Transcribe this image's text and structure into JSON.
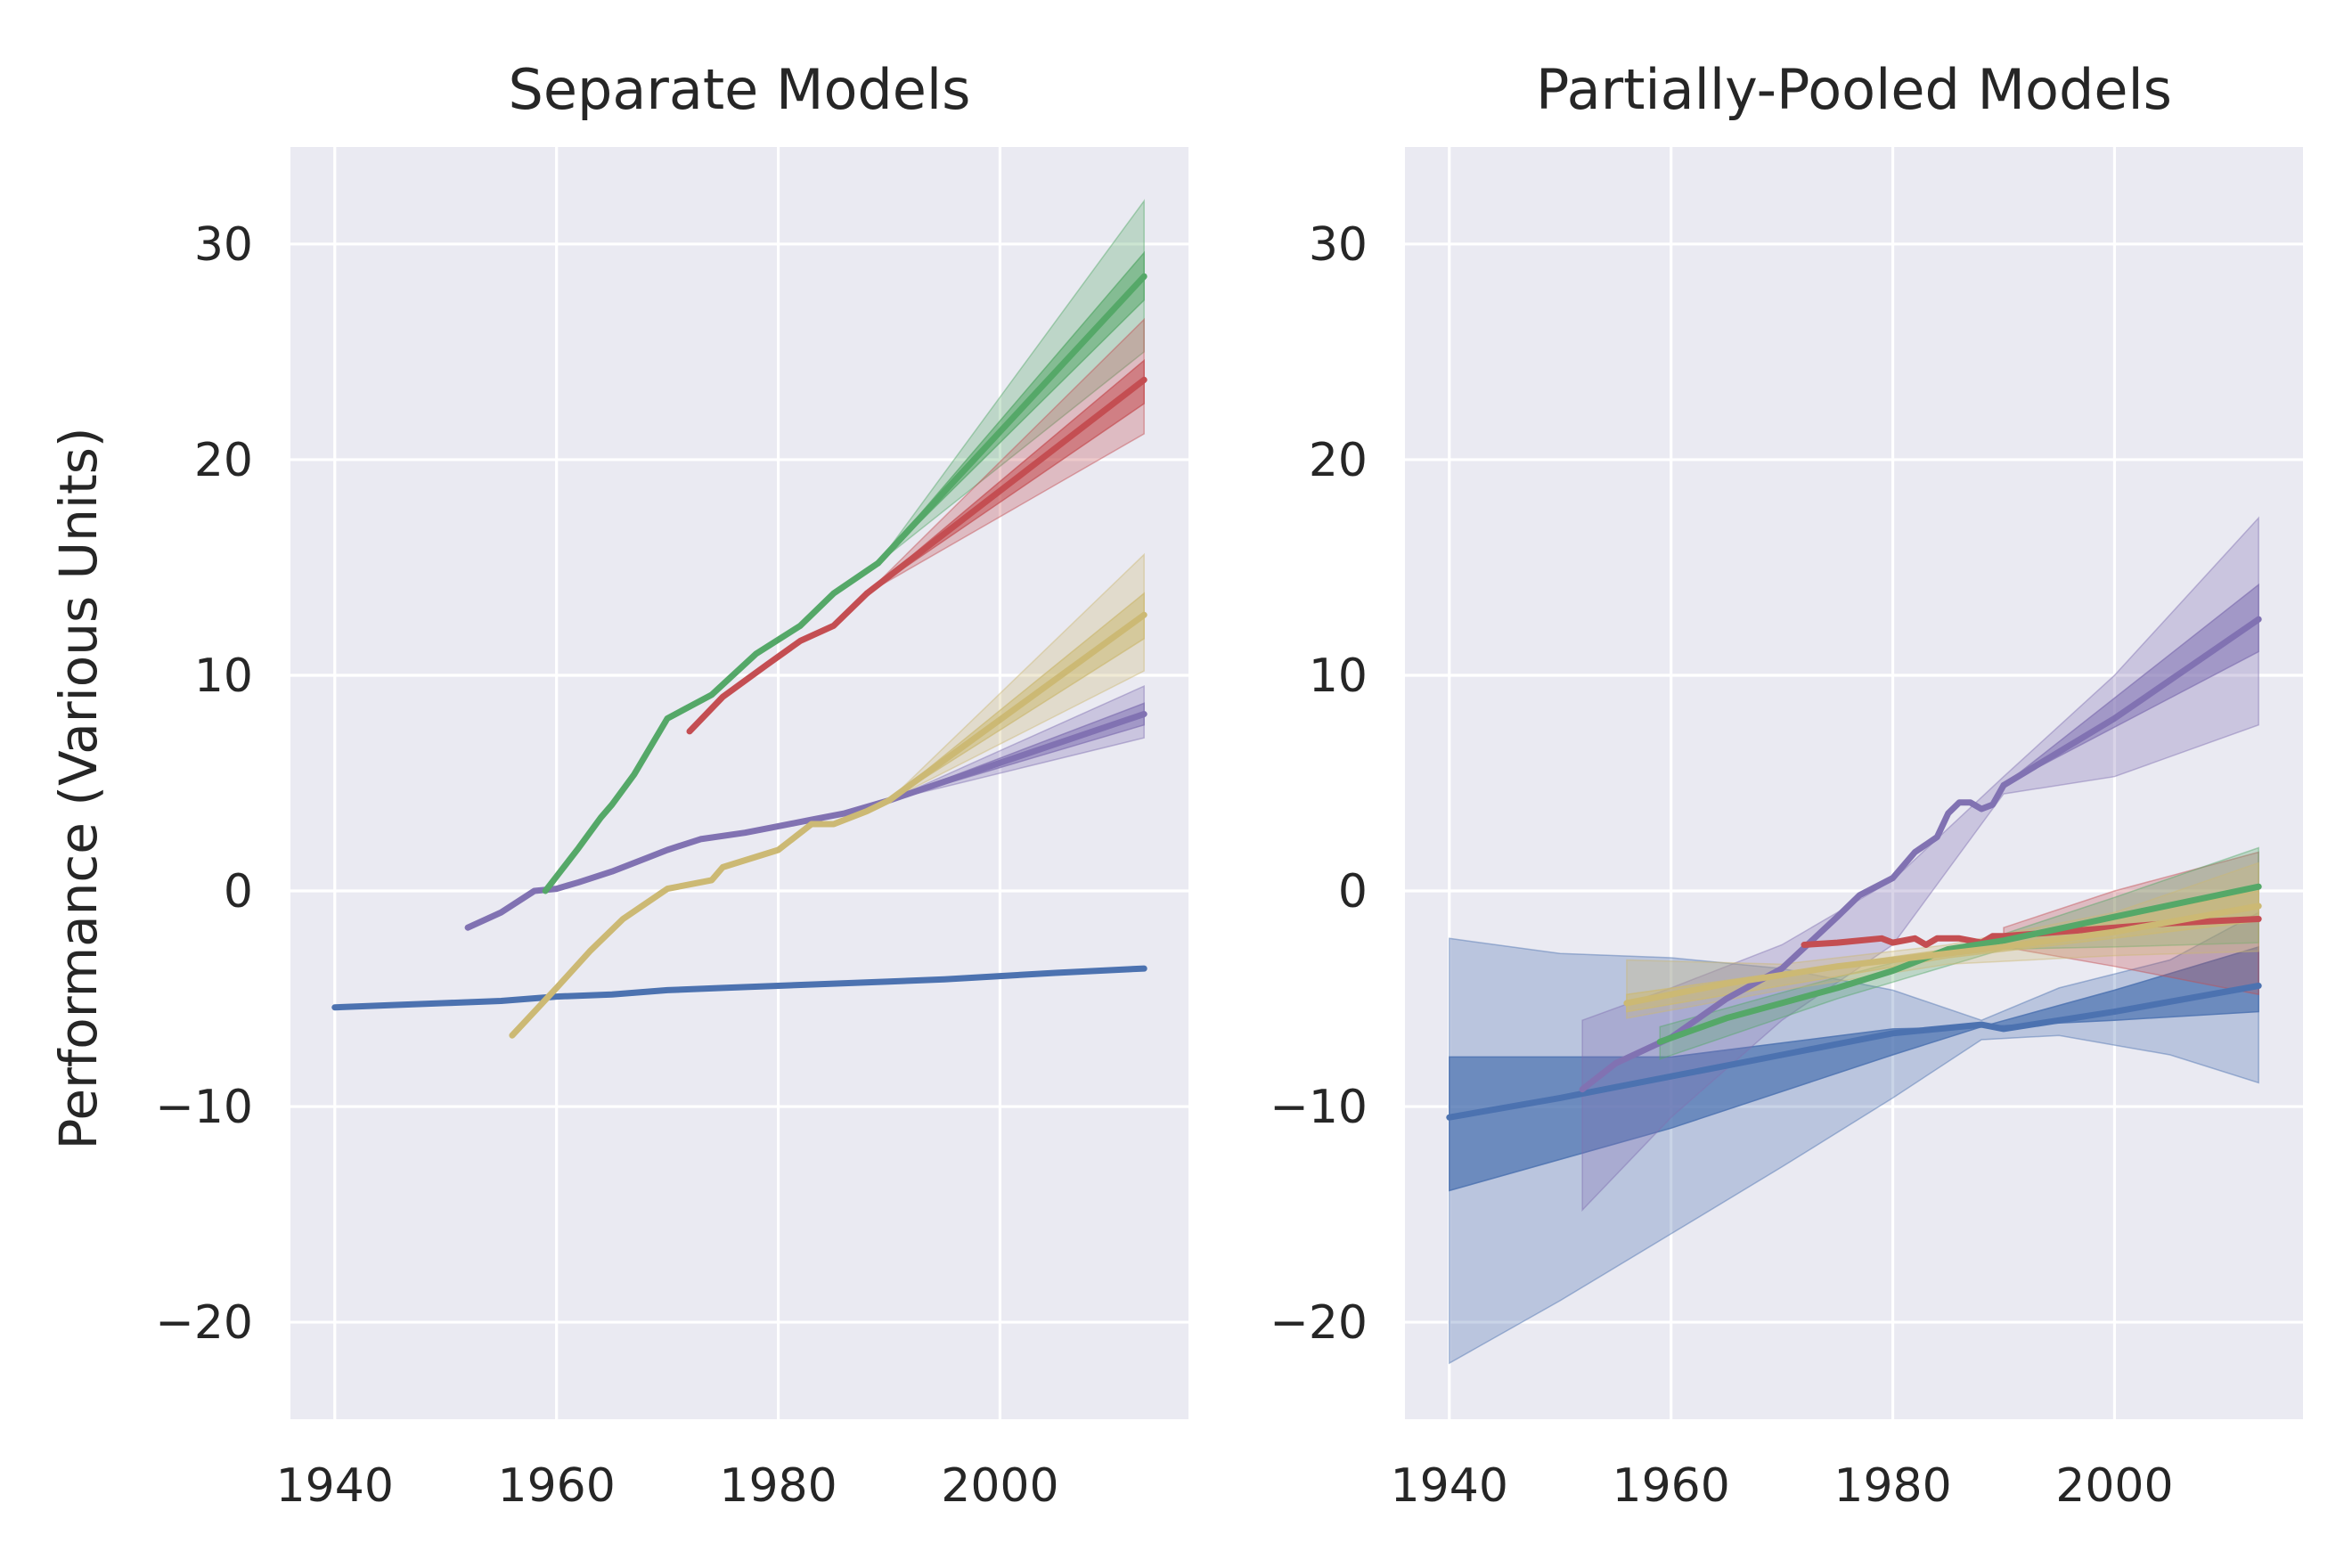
{
  "colors": {
    "background": "#eaeaf2",
    "grid": "#ffffff",
    "text": "#262626",
    "blue": "#4c72b0",
    "green": "#55a868",
    "red": "#c44e52",
    "purple": "#8172b2",
    "yellow": "#ccb974"
  },
  "figure": {
    "ylabel": "Performance (Various Units)"
  },
  "chart_data": [
    {
      "type": "line",
      "title": "Separate Models",
      "xlabel": "",
      "ylabel": "Performance (Various Units)",
      "xlim": [
        1936,
        2017
      ],
      "ylim": [
        -24.5,
        34.5
      ],
      "xticks": [
        1940,
        1960,
        1980,
        2000
      ],
      "yticks": [
        -20,
        -10,
        0,
        10,
        20,
        30
      ],
      "xtick_labels": [
        "1940",
        "1960",
        "1980",
        "2000"
      ],
      "ytick_labels": [
        "−20",
        "−10",
        "0",
        "10",
        "20",
        "30"
      ],
      "grid": true,
      "legend": "none",
      "series": [
        {
          "color": "blue",
          "x": [
            1940,
            1945,
            1950,
            1955,
            1960,
            1965,
            1970,
            1975,
            1980,
            1985,
            1990,
            1995,
            2000,
            2005,
            2013
          ],
          "y": [
            -5.4,
            -5.3,
            -5.2,
            -5.1,
            -4.9,
            -4.8,
            -4.6,
            -4.5,
            -4.4,
            -4.3,
            -4.2,
            -4.1,
            -3.95,
            -3.8,
            -3.6
          ],
          "bands": []
        },
        {
          "color": "purple",
          "x": [
            1952,
            1955,
            1958,
            1960,
            1962,
            1965,
            1968,
            1970,
            1973,
            1977,
            1980,
            1983,
            1986,
            1988,
            1990
          ],
          "y": [
            -1.7,
            -1.0,
            0.0,
            0.1,
            0.4,
            0.9,
            1.5,
            1.9,
            2.4,
            2.7,
            3.0,
            3.3,
            3.6,
            3.9,
            4.2
          ],
          "bands": [
            {
              "opacity": 0.3,
              "x": [
                1990,
                2013
              ],
              "lower": [
                4.2,
                7.1
              ],
              "upper": [
                4.2,
                9.5
              ]
            },
            {
              "opacity": 0.55,
              "x": [
                1990,
                2013
              ],
              "lower": [
                4.2,
                7.7
              ],
              "upper": [
                4.2,
                8.7
              ]
            }
          ],
          "forecast": {
            "x": [
              1990,
              2013
            ],
            "y": [
              4.2,
              8.2
            ]
          }
        },
        {
          "color": "yellow",
          "x": [
            1956,
            1960,
            1963,
            1966,
            1970,
            1974,
            1975,
            1980,
            1983,
            1985,
            1988,
            1990
          ],
          "y": [
            -6.7,
            -4.5,
            -2.8,
            -1.3,
            0.1,
            0.5,
            1.1,
            1.9,
            3.1,
            3.1,
            3.7,
            4.2
          ],
          "bands": [
            {
              "opacity": 0.3,
              "x": [
                1990,
                2013
              ],
              "lower": [
                4.2,
                10.2
              ],
              "upper": [
                4.2,
                15.6
              ]
            },
            {
              "opacity": 0.55,
              "x": [
                1990,
                2013
              ],
              "lower": [
                4.2,
                11.7
              ],
              "upper": [
                4.2,
                13.8
              ]
            }
          ],
          "forecast": {
            "x": [
              1990,
              2013
            ],
            "y": [
              4.2,
              12.8
            ]
          }
        },
        {
          "color": "green",
          "x": [
            1959,
            1962,
            1964,
            1965,
            1967,
            1970,
            1974,
            1978,
            1982,
            1985,
            1989
          ],
          "y": [
            0.0,
            2.0,
            3.4,
            4.0,
            5.4,
            8.0,
            9.1,
            11.0,
            12.3,
            13.8,
            15.2
          ],
          "bands": [
            {
              "opacity": 0.3,
              "x": [
                1989,
                2013
              ],
              "lower": [
                15.2,
                25.0
              ],
              "upper": [
                15.2,
                32.0
              ]
            },
            {
              "opacity": 0.55,
              "x": [
                1989,
                2013
              ],
              "lower": [
                15.2,
                27.4
              ],
              "upper": [
                15.2,
                29.6
              ]
            }
          ],
          "forecast": {
            "x": [
              1989,
              2013
            ],
            "y": [
              15.2,
              28.5
            ]
          }
        },
        {
          "color": "red",
          "x": [
            1972,
            1975,
            1979,
            1982,
            1985,
            1988
          ],
          "y": [
            7.4,
            9.0,
            10.5,
            11.6,
            12.3,
            13.8
          ],
          "bands": [
            {
              "opacity": 0.3,
              "x": [
                1988,
                2013
              ],
              "lower": [
                13.8,
                21.2
              ],
              "upper": [
                13.8,
                26.5
              ]
            },
            {
              "opacity": 0.55,
              "x": [
                1988,
                2013
              ],
              "lower": [
                13.8,
                22.6
              ],
              "upper": [
                13.8,
                24.6
              ]
            }
          ],
          "forecast": {
            "x": [
              1988,
              2013
            ],
            "y": [
              13.8,
              23.7
            ]
          }
        }
      ]
    },
    {
      "type": "line",
      "title": "Partially-Pooled Models",
      "xlabel": "",
      "ylabel": "",
      "xlim": [
        1936,
        2017
      ],
      "ylim": [
        -24.5,
        34.5
      ],
      "xticks": [
        1940,
        1960,
        1980,
        2000
      ],
      "yticks": [
        -20,
        -10,
        0,
        10,
        20,
        30
      ],
      "xtick_labels": [
        "1940",
        "1960",
        "1980",
        "2000"
      ],
      "ytick_labels": [
        "−20",
        "−10",
        "0",
        "10",
        "20",
        "30"
      ],
      "grid": true,
      "legend": "none",
      "series": [
        {
          "color": "blue",
          "x": [
            1940,
            1950,
            1960,
            1970,
            1980,
            1988,
            1990,
            2000,
            2013
          ],
          "y": [
            -10.5,
            -9.6,
            -8.6,
            -7.6,
            -6.6,
            -6.2,
            -6.4,
            -5.6,
            -4.4
          ],
          "bands": [
            {
              "opacity": 0.3,
              "x": [
                1940,
                1950,
                1960,
                1970,
                1980,
                1988,
                1995,
                2005,
                2013
              ],
              "lower": [
                -21.9,
                -19.0,
                -15.9,
                -12.8,
                -9.6,
                -6.9,
                -6.7,
                -7.6,
                -8.9
              ],
              "upper": [
                -2.2,
                -2.9,
                -3.1,
                -3.6,
                -4.6,
                -6.0,
                -4.5,
                -3.2,
                -1.0
              ]
            },
            {
              "opacity": 0.7,
              "x": [
                1940,
                1960,
                1980,
                1988,
                2000,
                2013
              ],
              "lower": [
                -13.9,
                -11.0,
                -7.6,
                -6.3,
                -6.0,
                -5.6
              ],
              "upper": [
                -7.7,
                -7.7,
                -6.4,
                -6.3,
                -4.6,
                -2.6
              ]
            }
          ]
        },
        {
          "color": "purple",
          "x": [
            1952,
            1955,
            1960,
            1965,
            1970,
            1975,
            1977,
            1980,
            1982,
            1984,
            1985,
            1986,
            1987,
            1988,
            1989,
            1990
          ],
          "y": [
            -9.2,
            -8.0,
            -6.8,
            -5.0,
            -3.6,
            -1.2,
            -0.2,
            0.6,
            1.8,
            2.5,
            3.6,
            4.1,
            4.1,
            3.8,
            4.0,
            4.9
          ],
          "bands": [
            {
              "opacity": 0.3,
              "x": [
                1952,
                1960,
                1970,
                1980,
                1990,
                2000,
                2013
              ],
              "lower": [
                -14.8,
                -10.5,
                -6.0,
                -2.5,
                4.5,
                5.3,
                7.7
              ],
              "upper": [
                -6.0,
                -4.5,
                -2.5,
                0.5,
                5.3,
                10.0,
                17.3
              ]
            },
            {
              "opacity": 0.55,
              "x": [
                1990,
                2013
              ],
              "lower": [
                4.9,
                11.1
              ],
              "upper": [
                4.9,
                14.2
              ]
            }
          ],
          "forecast": {
            "x": [
              1990,
              2000,
              2013
            ],
            "y": [
              4.9,
              8.0,
              12.6
            ]
          }
        },
        {
          "color": "red",
          "x": [
            1972,
            1975,
            1979,
            1980,
            1982,
            1983,
            1984,
            1986,
            1988,
            1989,
            1990,
            1995,
            2000,
            2005,
            2013
          ],
          "y": [
            -2.5,
            -2.4,
            -2.2,
            -2.4,
            -2.2,
            -2.5,
            -2.2,
            -2.2,
            -2.4,
            -2.1,
            -2.1,
            -1.9,
            -1.7,
            -1.5,
            -1.3
          ],
          "bands": [
            {
              "opacity": 0.3,
              "x": [
                1990,
                2000,
                2013
              ],
              "lower": [
                -2.6,
                -3.5,
                -4.8
              ],
              "upper": [
                -1.7,
                0.0,
                1.8
              ]
            }
          ]
        },
        {
          "color": "green",
          "x": [
            1959,
            1965,
            1970,
            1975,
            1980,
            1985,
            1990,
            2000,
            2013
          ],
          "y": [
            -7.0,
            -5.9,
            -5.2,
            -4.5,
            -3.7,
            -2.7,
            -2.3,
            -1.2,
            0.2
          ],
          "bands": [
            {
              "opacity": 0.3,
              "x": [
                1959,
                1975,
                1990,
                2000,
                2013
              ],
              "lower": [
                -7.8,
                -5.0,
                -2.7,
                -2.6,
                -2.4
              ],
              "upper": [
                -6.3,
                -4.0,
                -2.0,
                -0.3,
                2.0
              ]
            }
          ]
        },
        {
          "color": "yellow",
          "x": [
            1956,
            1965,
            1975,
            1985,
            1990,
            2000,
            2013
          ],
          "y": [
            -5.2,
            -4.3,
            -3.5,
            -2.9,
            -2.6,
            -1.9,
            -0.7
          ],
          "bands": [
            {
              "opacity": 0.3,
              "x": [
                1956,
                1970,
                1985,
                2000,
                2013
              ],
              "lower": [
                -5.9,
                -4.6,
                -3.4,
                -3.0,
                -2.8
              ],
              "upper": [
                -3.2,
                -3.4,
                -2.5,
                -1.0,
                1.3
              ]
            },
            {
              "opacity": 0.55,
              "x": [
                1956,
                1985,
                2013
              ],
              "lower": [
                -5.6,
                -3.1,
                -1.4
              ],
              "upper": [
                -4.8,
                -2.7,
                0.0
              ]
            }
          ]
        }
      ]
    }
  ]
}
